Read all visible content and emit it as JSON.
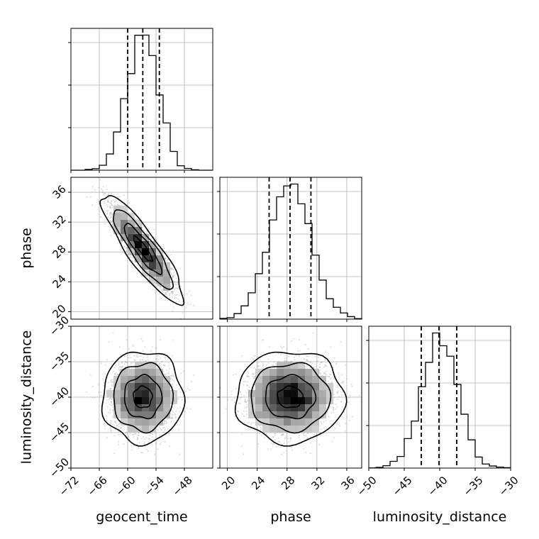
{
  "chart_data": {
    "type": "corner",
    "parameters": [
      "geocent_time",
      "phase",
      "luminosity_distance"
    ],
    "ranges": {
      "geocent_time": [
        -72,
        -42
      ],
      "phase": [
        19,
        38
      ],
      "luminosity_distance": [
        -50,
        -30
      ]
    },
    "ticks": {
      "geocent_time": [
        -72,
        -66,
        -60,
        -54,
        -48
      ],
      "phase": [
        20,
        24,
        28,
        32,
        36
      ],
      "luminosity_distance": [
        -50,
        -45,
        -40,
        -35,
        -30
      ]
    },
    "tick_labels": {
      "geocent_time": [
        "−72",
        "−66",
        "−60",
        "−54",
        "−48"
      ],
      "phase": [
        "20",
        "24",
        "28",
        "32",
        "36"
      ],
      "luminosity_distance": [
        "−50",
        "−45",
        "−40",
        "−35",
        "−30"
      ]
    },
    "quantiles": {
      "geocent_time": [
        -60.0,
        -56.8,
        -53.3
      ],
      "phase": [
        25.6,
        28.4,
        31.2
      ],
      "luminosity_distance": [
        -42.6,
        -40.1,
        -37.6
      ]
    },
    "stats": {
      "geocent_time": {
        "mean": -56.8,
        "sd": 3.3
      },
      "phase": {
        "mean": 28.4,
        "sd": 2.8
      },
      "luminosity_distance": {
        "mean": -40.0,
        "sd": 2.5
      }
    },
    "correlation": {
      "geocent_time|phase": -0.88,
      "geocent_time|luminosity_distance": 0.0,
      "phase|luminosity_distance": 0.0
    },
    "grid": true,
    "color": "#000000",
    "scatter_color": "#9a9a9a"
  }
}
